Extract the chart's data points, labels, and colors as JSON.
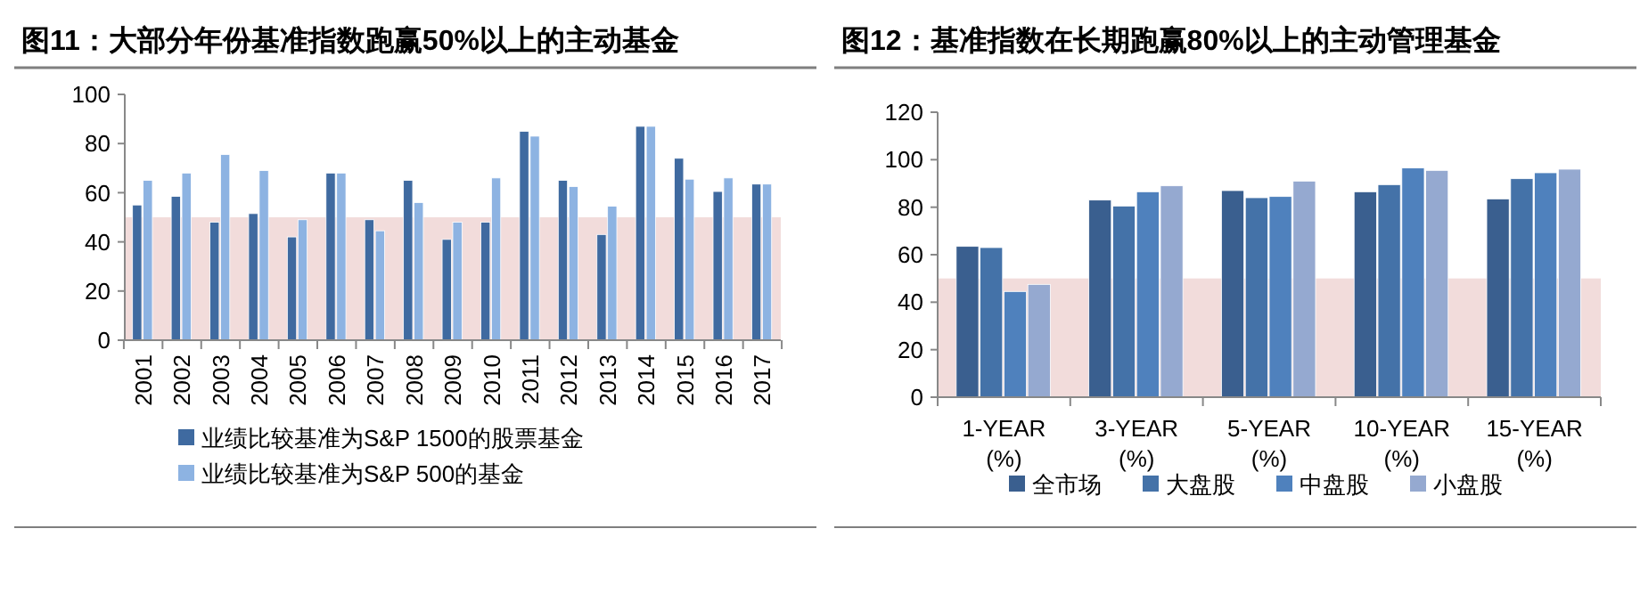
{
  "chart_data": [
    {
      "type": "bar",
      "title": "图11：大部分年份基准指数跑赢50%以上的主动基金",
      "categories": [
        "2001",
        "2002",
        "2003",
        "2004",
        "2005",
        "2006",
        "2007",
        "2008",
        "2009",
        "2010",
        "2011",
        "2012",
        "2013",
        "2014",
        "2015",
        "2016",
        "2017"
      ],
      "series": [
        {
          "name": "业绩比较基准为S&P 1500的股票基金",
          "color": "#3f6aa0",
          "values": [
            55,
            58.5,
            48,
            51.5,
            42,
            68,
            49,
            65,
            41,
            48,
            85,
            65,
            43,
            87,
            74,
            60.5,
            63.5
          ]
        },
        {
          "name": "业绩比较基准为S&P 500的基金",
          "color": "#8db3e2",
          "values": [
            65,
            68,
            75.5,
            69,
            49,
            68,
            44.5,
            56,
            48,
            66,
            83,
            62.5,
            54.5,
            87,
            65.5,
            66,
            63.5
          ]
        }
      ],
      "ylim": [
        0,
        100
      ],
      "yticks": [
        0,
        20,
        40,
        60,
        80,
        100
      ],
      "bands": [
        {
          "axis": "y",
          "from": 0,
          "to": 50,
          "color": "#f2dcdb"
        }
      ],
      "grid": false,
      "legend": "bottom"
    },
    {
      "type": "bar",
      "title": "图12：基准指数在长期跑赢80%以上的主动管理基金",
      "categories": [
        "1-YEAR (%)",
        "3-YEAR (%)",
        "5-YEAR (%)",
        "10-YEAR (%)",
        "15-YEAR (%)"
      ],
      "series": [
        {
          "name": "全市场",
          "color": "#3a5f8f",
          "values": [
            63.5,
            83,
            87,
            86.5,
            83.5
          ]
        },
        {
          "name": "大盘股",
          "color": "#4472a8",
          "values": [
            63,
            80.5,
            84,
            89.5,
            92
          ]
        },
        {
          "name": "中盘股",
          "color": "#4f81bd",
          "values": [
            44.5,
            86.5,
            84.5,
            96.5,
            94.5
          ]
        },
        {
          "name": "小盘股",
          "color": "#95a9d0",
          "values": [
            47.5,
            89,
            91,
            95.5,
            96
          ]
        }
      ],
      "ylim": [
        0,
        120
      ],
      "yticks": [
        0,
        20,
        40,
        60,
        80,
        100,
        120
      ],
      "bands": [
        {
          "axis": "y",
          "from": 0,
          "to": 50,
          "color": "#f2dcdb"
        }
      ],
      "grid": false,
      "legend": "bottom"
    }
  ]
}
